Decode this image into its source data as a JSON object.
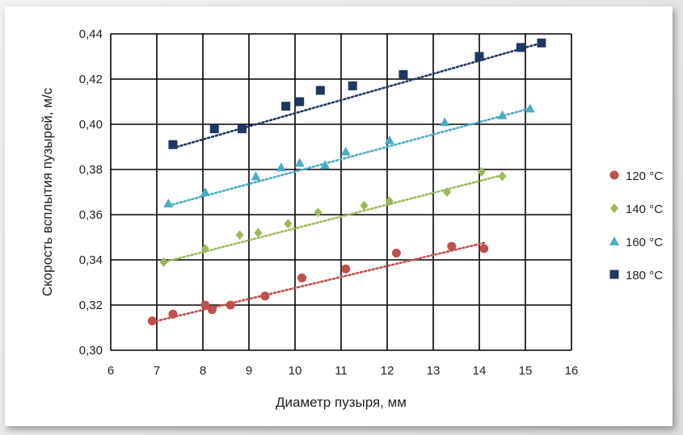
{
  "chart_data": {
    "type": "scatter",
    "title": "",
    "xlabel": "Диаметр пузыря, мм",
    "ylabel": "Скорость всплытия пузырей, м/с",
    "xlim": [
      6,
      16
    ],
    "ylim": [
      0.3,
      0.44
    ],
    "x_ticks": [
      "6",
      "7",
      "8",
      "9",
      "10",
      "11",
      "12",
      "13",
      "14",
      "15",
      "16"
    ],
    "y_ticks": [
      "0,30",
      "0,32",
      "0,34",
      "0,36",
      "0,38",
      "0,40",
      "0,42",
      "0,44"
    ],
    "grid": true,
    "legend_position": "right",
    "trendline": "linear, dotted",
    "series": [
      {
        "name": "120 °C",
        "marker": "circle",
        "color": "#c0504d",
        "points": [
          [
            6.9,
            0.313
          ],
          [
            7.35,
            0.316
          ],
          [
            8.05,
            0.32
          ],
          [
            8.2,
            0.318
          ],
          [
            8.6,
            0.32
          ],
          [
            9.35,
            0.324
          ],
          [
            10.15,
            0.332
          ],
          [
            11.1,
            0.336
          ],
          [
            12.2,
            0.343
          ],
          [
            13.4,
            0.346
          ],
          [
            14.1,
            0.345
          ]
        ],
        "trend": [
          [
            6.9,
            0.3125
          ],
          [
            14.1,
            0.3475
          ]
        ]
      },
      {
        "name": "140 °C",
        "marker": "diamond",
        "color": "#9bbb59",
        "points": [
          [
            7.15,
            0.339
          ],
          [
            8.05,
            0.345
          ],
          [
            8.8,
            0.351
          ],
          [
            9.2,
            0.352
          ],
          [
            9.85,
            0.356
          ],
          [
            10.5,
            0.361
          ],
          [
            11.5,
            0.364
          ],
          [
            12.05,
            0.366
          ],
          [
            13.3,
            0.37
          ],
          [
            14.05,
            0.379
          ],
          [
            14.5,
            0.377
          ]
        ],
        "trend": [
          [
            7.15,
            0.339
          ],
          [
            14.5,
            0.3775
          ]
        ]
      },
      {
        "name": "160 °C",
        "marker": "triangle",
        "color": "#4bacc6",
        "points": [
          [
            7.25,
            0.365
          ],
          [
            8.05,
            0.37
          ],
          [
            9.15,
            0.377
          ],
          [
            9.7,
            0.381
          ],
          [
            10.1,
            0.383
          ],
          [
            10.65,
            0.382
          ],
          [
            11.1,
            0.388
          ],
          [
            12.05,
            0.393
          ],
          [
            13.25,
            0.401
          ],
          [
            14.5,
            0.404
          ],
          [
            15.1,
            0.407
          ]
        ],
        "trend": [
          [
            7.25,
            0.364
          ],
          [
            15.1,
            0.407
          ]
        ]
      },
      {
        "name": "180 °C",
        "marker": "square",
        "color": "#1f3864",
        "points": [
          [
            7.35,
            0.391
          ],
          [
            8.25,
            0.398
          ],
          [
            8.85,
            0.398
          ],
          [
            9.8,
            0.408
          ],
          [
            10.1,
            0.41
          ],
          [
            10.55,
            0.415
          ],
          [
            11.25,
            0.417
          ],
          [
            12.35,
            0.422
          ],
          [
            14.0,
            0.43
          ],
          [
            14.9,
            0.434
          ],
          [
            15.35,
            0.436
          ]
        ],
        "trend": [
          [
            7.35,
            0.3895
          ],
          [
            15.35,
            0.436
          ]
        ]
      }
    ]
  }
}
